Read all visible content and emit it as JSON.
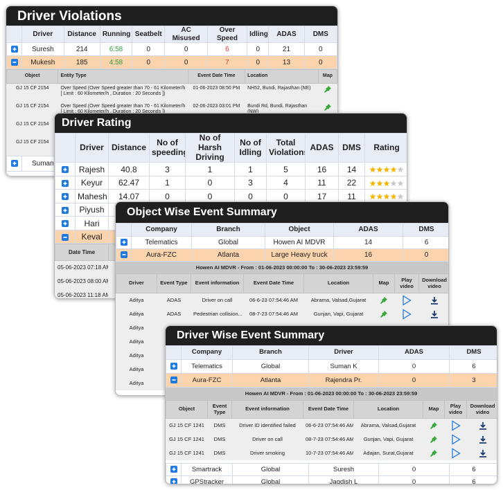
{
  "driver_violations": {
    "title": "Driver Violations",
    "columns": [
      "Driver",
      "Distance",
      "Running",
      "Seatbelt",
      "AC Misused",
      "Over Speed",
      "Idling",
      "ADAS",
      "DMS"
    ],
    "rows": [
      [
        "Suresh",
        214,
        "6:58",
        0,
        0,
        6,
        0,
        21,
        0
      ],
      [
        "Mukesh",
        185,
        "4:58",
        0,
        0,
        7,
        0,
        13,
        0
      ]
    ],
    "details": {
      "columns": [
        "Object",
        "Entity Type",
        "Event Date Time",
        "Location",
        "Map"
      ],
      "rows": [
        [
          "GJ 15 CF 2154",
          "Over Speed (Over Speed greater than 70 - 61 Kilometer/h [ Limit : 60 Kilometer/h , Duration : 20 Seconds ])",
          "01-06-2023 08:50 PM",
          "NH52, Bundi, Rajasthan (NE)"
        ],
        [
          "GJ 15 CF 2154",
          "Over Speed (Over Speed greater than 70 - 61 Kilometer/h [ Limit : 60 Kilometer/h , Duration : 20 Seconds ])",
          "02-06-2023 03:01 PM",
          "Bundi Rd, Bundi, Rajasthan (NW)"
        ],
        [
          "GJ 15 CF 2154"
        ],
        [
          "GJ 15 CF 2154"
        ]
      ]
    },
    "more_rows": [
      [
        "Suman"
      ]
    ]
  },
  "driver_rating": {
    "title": "Driver Rating",
    "columns": [
      "Driver",
      "Distance",
      "No of speeding",
      "No of Harsh Driving",
      "No of Idling",
      "Total Violations",
      "ADAS",
      "DMS",
      "Rating"
    ],
    "rows": [
      [
        "Rajesh",
        40.8,
        3,
        1,
        1,
        5,
        16,
        14,
        4
      ],
      [
        "Keyur",
        62.47,
        1,
        0,
        3,
        4,
        11,
        22,
        3
      ],
      [
        "Mahesh",
        14.07,
        0,
        0,
        0,
        0,
        17,
        11,
        4
      ],
      [
        "Piyush"
      ],
      [
        "Hari"
      ],
      [
        "Keval"
      ]
    ],
    "details": {
      "columns": [
        "Date Time"
      ],
      "rows": [
        [
          "05-06-2023 07:18 AM"
        ],
        [
          "05-06-2023 08:00 AM"
        ],
        [
          "05-06-2023 11:18 AM"
        ]
      ]
    }
  },
  "object_event_summary": {
    "title": "Object Wise Event Summary",
    "columns": [
      "Company",
      "Branch",
      "Object",
      "ADAS",
      "DMS"
    ],
    "rows": [
      [
        "Telematics",
        "Global",
        "Howen AI MDVR",
        14,
        6
      ],
      [
        "Aura-FZC",
        "Atlanta",
        "Large Heavy truck",
        16,
        0
      ]
    ],
    "banner": "Howen AI MDVR - From : 01-06-2023 00:00:00 To : 30-06-2023 23:59:59",
    "details": {
      "columns": [
        "Driver",
        "Event Type",
        "Event information",
        "Event Date Time",
        "Location",
        "Map",
        "Play video",
        "Download video"
      ],
      "rows": [
        [
          "Aditya",
          "ADAS",
          "Driver on call",
          "06-6-23 07:54:46 AM",
          "Abrama, Valsad,Gujarat"
        ],
        [
          "Aditya",
          "ADAS",
          "Pedestrian collision...",
          "08-7-23 07:54:46 AM",
          "Gunjan, Vapi, Gujarat"
        ],
        [
          "Aditya"
        ],
        [
          "Aditya"
        ],
        [
          "Aditya"
        ],
        [
          "Aditya"
        ],
        [
          "Aditya"
        ]
      ]
    }
  },
  "driver_event_summary": {
    "title": "Driver Wise Event Summary",
    "columns": [
      "Company",
      "Branch",
      "Driver",
      "ADAS",
      "DMS"
    ],
    "rows": [
      [
        "Telematics",
        "Global",
        "Suman K",
        0,
        6
      ],
      [
        "Aura-FZC",
        "Atlanta",
        "Rajendra Pr.",
        0,
        3
      ]
    ],
    "banner": "Howen AI MDVR - From : 01-06-2023 00:00:00 To : 30-06-2023 23:59:59",
    "details": {
      "columns": [
        "Object",
        "Event Type",
        "Event information",
        "Event Date Time",
        "Location",
        "Map",
        "Play video",
        "Download video"
      ],
      "rows": [
        [
          "GJ 15 CF 1241",
          "DMS",
          "Driver ID identified failed",
          "06-6-23 07:54:46 AM",
          "Abrama, Valsad,Gujarat"
        ],
        [
          "GJ 15 CF 1241",
          "DMS",
          "Driver on call",
          "08-7-23 07:54:46 AM",
          "Gunjan, Vapi, Gujarat"
        ],
        [
          "GJ 15 CF 1241",
          "DMS",
          "Driver smoking",
          "10-7-23 07:54:46 AM",
          "Adajan, Surat,Gujarat"
        ]
      ]
    },
    "more_rows": [
      [
        "Smartrack",
        "Global",
        "Suresh",
        0,
        6
      ],
      [
        "GPStracker",
        "Global",
        "Jagdish  L",
        0,
        6
      ]
    ]
  }
}
